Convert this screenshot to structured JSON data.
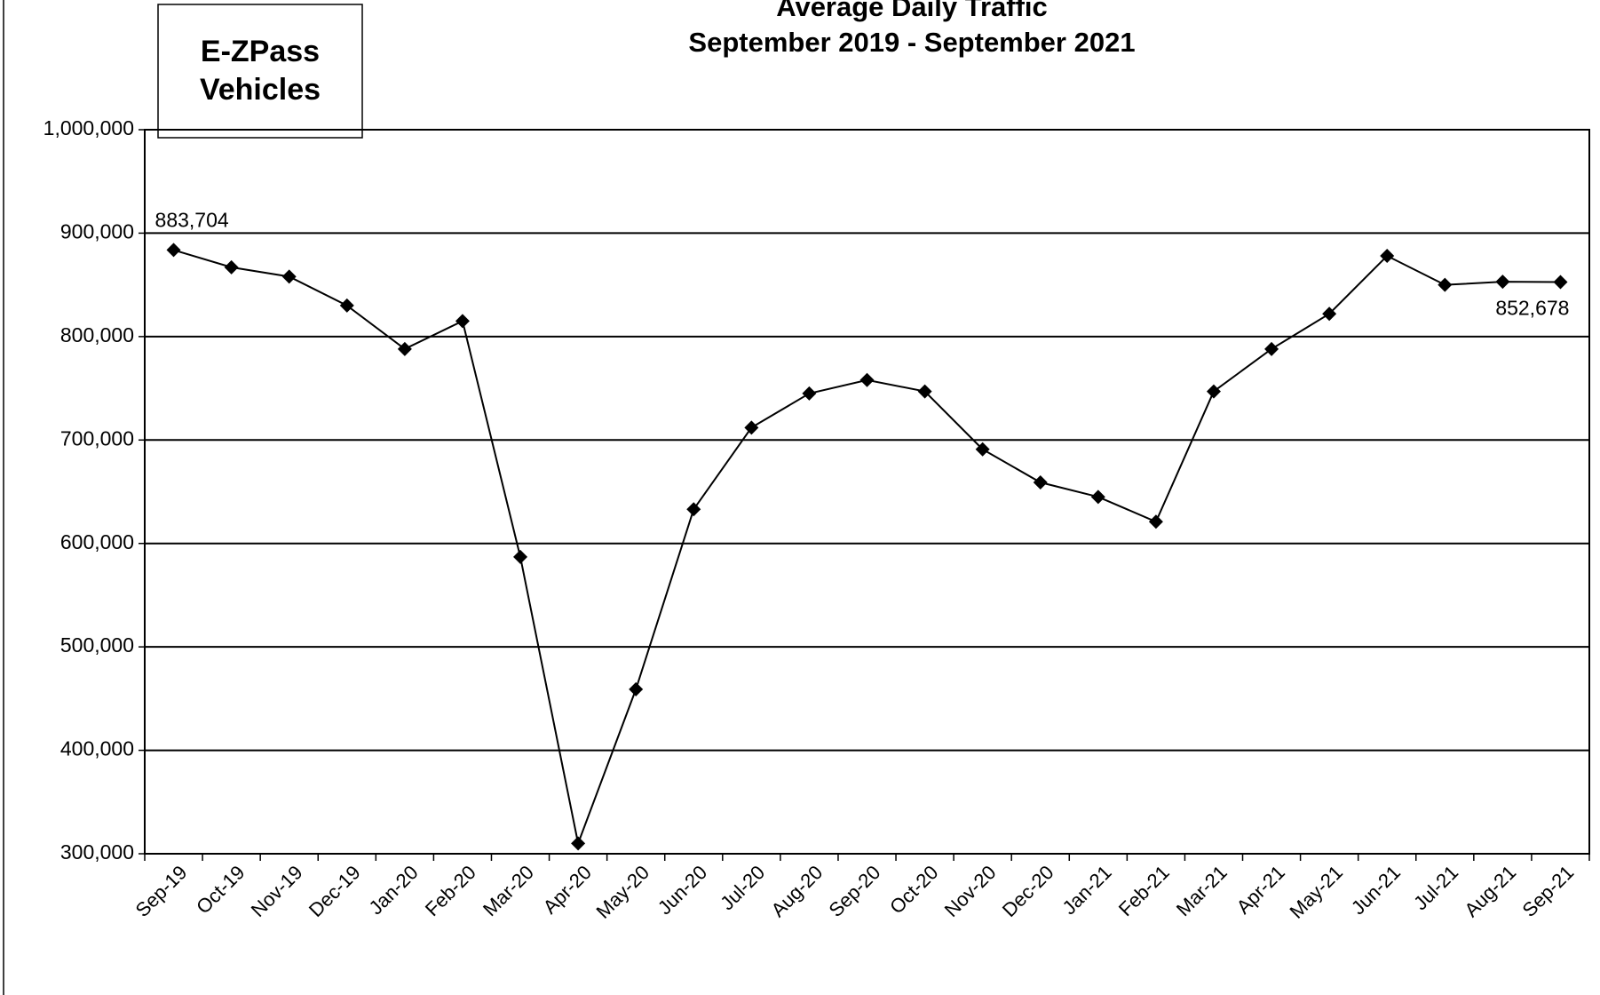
{
  "chart_data": {
    "type": "line",
    "title": "Average Daily Traffic",
    "subtitle": "September 2019 - September 2021",
    "annotation": [
      "E-ZPass",
      "Vehicles"
    ],
    "categories": [
      "Sep-19",
      "Oct-19",
      "Nov-19",
      "Dec-19",
      "Jan-20",
      "Feb-20",
      "Mar-20",
      "Apr-20",
      "May-20",
      "Jun-20",
      "Jul-20",
      "Aug-20",
      "Sep-20",
      "Oct-20",
      "Nov-20",
      "Dec-20",
      "Jan-21",
      "Feb-21",
      "Mar-21",
      "Apr-21",
      "May-21",
      "Jun-21",
      "Jul-21",
      "Aug-21",
      "Sep-21"
    ],
    "series": [
      {
        "name": "E-ZPass Vehicles",
        "color": "#000000",
        "values": [
          883704,
          867000,
          858000,
          830000,
          788000,
          815000,
          587000,
          310000,
          459000,
          633000,
          712000,
          745000,
          758000,
          747000,
          691000,
          659000,
          645000,
          621000,
          747000,
          788000,
          822000,
          878000,
          850000,
          853000,
          852678
        ],
        "value_labels": [
          "883,704",
          null,
          null,
          null,
          null,
          null,
          null,
          null,
          null,
          null,
          null,
          null,
          null,
          null,
          null,
          null,
          null,
          null,
          null,
          null,
          null,
          null,
          null,
          null,
          "852,678"
        ]
      }
    ],
    "ylim": [
      300000,
      1000000
    ],
    "yticks": [
      {
        "value": 300000,
        "label": "300,000"
      },
      {
        "value": 400000,
        "label": "400,000"
      },
      {
        "value": 500000,
        "label": "500,000"
      },
      {
        "value": 600000,
        "label": "600,000"
      },
      {
        "value": 700000,
        "label": "700,000"
      },
      {
        "value": 800000,
        "label": "800,000"
      },
      {
        "value": 900000,
        "label": "900,000"
      },
      {
        "value": 1000000,
        "label": "1,000,000"
      }
    ],
    "grid": true
  }
}
